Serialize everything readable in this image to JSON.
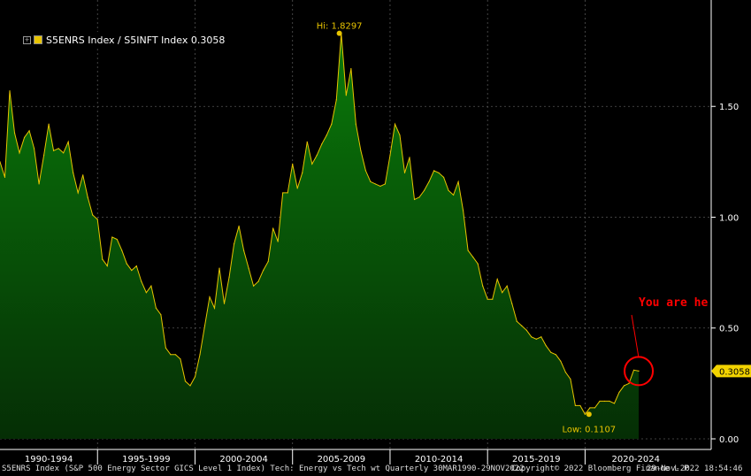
{
  "chart_data": {
    "type": "area",
    "legend": {
      "label": "S5ENRS Index / S5INFT Index",
      "last_value": "0.3058"
    },
    "y_axis": {
      "ticks": [
        "0.00",
        "0.50",
        "1.00",
        "1.50"
      ],
      "tick_values": [
        0,
        0.5,
        1.0,
        1.5
      ],
      "ylim": [
        0,
        1.98
      ],
      "position": "right"
    },
    "x_axis": {
      "tick_labels": [
        "1990-1994",
        "1995-1999",
        "2000-2004",
        "2005-2009",
        "2010-2014",
        "2015-2019",
        "2020-2024"
      ]
    },
    "xlim": [
      1990.0,
      2025.65
    ],
    "annotations": {
      "high": {
        "label": "Hi: 1.8297",
        "x": 2007.4,
        "y": 1.8297
      },
      "low": {
        "label": "Low: 0.1107",
        "x": 2020.2,
        "y": 0.1107
      },
      "callout": {
        "text": "You are he",
        "color": "#ff0000"
      },
      "last_value_tag": "0.3058"
    },
    "series": [
      {
        "name": "S5ENRS Index / S5INFT Index",
        "color": "#e8c400",
        "fill_top": "#0a7a0a",
        "fill_bottom": "#052e05",
        "x": [
          1990.0,
          1990.25,
          1990.5,
          1990.75,
          1991.0,
          1991.25,
          1991.5,
          1991.75,
          1992.0,
          1992.25,
          1992.5,
          1992.75,
          1993.0,
          1993.25,
          1993.5,
          1993.75,
          1994.0,
          1994.25,
          1994.5,
          1994.75,
          1995.0,
          1995.25,
          1995.5,
          1995.75,
          1996.0,
          1996.25,
          1996.5,
          1996.75,
          1997.0,
          1997.25,
          1997.5,
          1997.75,
          1998.0,
          1998.25,
          1998.5,
          1998.75,
          1999.0,
          1999.25,
          1999.5,
          1999.75,
          2000.0,
          2000.25,
          2000.5,
          2000.75,
          2001.0,
          2001.25,
          2001.5,
          2001.75,
          2002.0,
          2002.25,
          2002.5,
          2002.75,
          2003.0,
          2003.25,
          2003.5,
          2003.75,
          2004.0,
          2004.25,
          2004.5,
          2004.75,
          2005.0,
          2005.25,
          2005.5,
          2005.75,
          2006.0,
          2006.25,
          2006.5,
          2006.75,
          2007.0,
          2007.25,
          2007.5,
          2007.75,
          2008.0,
          2008.25,
          2008.5,
          2008.75,
          2009.0,
          2009.25,
          2009.5,
          2009.75,
          2010.0,
          2010.25,
          2010.5,
          2010.75,
          2011.0,
          2011.25,
          2011.5,
          2011.75,
          2012.0,
          2012.25,
          2012.5,
          2012.75,
          2013.0,
          2013.25,
          2013.5,
          2013.75,
          2014.0,
          2014.25,
          2014.5,
          2014.75,
          2015.0,
          2015.25,
          2015.5,
          2015.75,
          2016.0,
          2016.25,
          2016.5,
          2016.75,
          2017.0,
          2017.25,
          2017.5,
          2017.75,
          2018.0,
          2018.25,
          2018.5,
          2018.75,
          2019.0,
          2019.25,
          2019.5,
          2019.75,
          2020.0,
          2020.25,
          2020.5,
          2020.75,
          2021.0,
          2021.25,
          2021.5,
          2021.75,
          2022.0,
          2022.25,
          2022.5,
          2022.75
        ],
        "y": [
          1.25,
          1.18,
          1.57,
          1.38,
          1.29,
          1.36,
          1.39,
          1.31,
          1.15,
          1.28,
          1.42,
          1.3,
          1.31,
          1.29,
          1.34,
          1.2,
          1.11,
          1.19,
          1.09,
          1.01,
          0.99,
          0.81,
          0.78,
          0.91,
          0.9,
          0.85,
          0.79,
          0.76,
          0.78,
          0.71,
          0.66,
          0.69,
          0.59,
          0.56,
          0.41,
          0.38,
          0.38,
          0.36,
          0.26,
          0.24,
          0.28,
          0.38,
          0.51,
          0.64,
          0.59,
          0.77,
          0.61,
          0.73,
          0.88,
          0.96,
          0.85,
          0.77,
          0.69,
          0.71,
          0.76,
          0.8,
          0.95,
          0.89,
          1.11,
          1.11,
          1.24,
          1.13,
          1.2,
          1.34,
          1.24,
          1.28,
          1.33,
          1.37,
          1.42,
          1.53,
          1.8297,
          1.55,
          1.67,
          1.42,
          1.3,
          1.21,
          1.16,
          1.15,
          1.14,
          1.15,
          1.28,
          1.42,
          1.37,
          1.2,
          1.27,
          1.08,
          1.09,
          1.12,
          1.16,
          1.21,
          1.2,
          1.18,
          1.12,
          1.1,
          1.16,
          1.03,
          0.85,
          0.82,
          0.79,
          0.69,
          0.63,
          0.63,
          0.72,
          0.66,
          0.69,
          0.61,
          0.53,
          0.51,
          0.49,
          0.46,
          0.45,
          0.46,
          0.42,
          0.39,
          0.38,
          0.35,
          0.3,
          0.27,
          0.15,
          0.15,
          0.1107,
          0.14,
          0.14,
          0.17,
          0.17,
          0.17,
          0.16,
          0.21,
          0.24,
          0.25,
          0.31,
          0.3058
        ]
      }
    ],
    "footer": {
      "left": "S5ENRS Index (S&P 500 Energy Sector GICS Level 1 Index) Tech: Energy vs Tech wt  Quarterly 30MAR1990-29NOV2022",
      "copyright": "Copyright© 2022 Bloomberg Finance L.P.",
      "timestamp": "29-Nov-2022 18:54:46"
    }
  }
}
